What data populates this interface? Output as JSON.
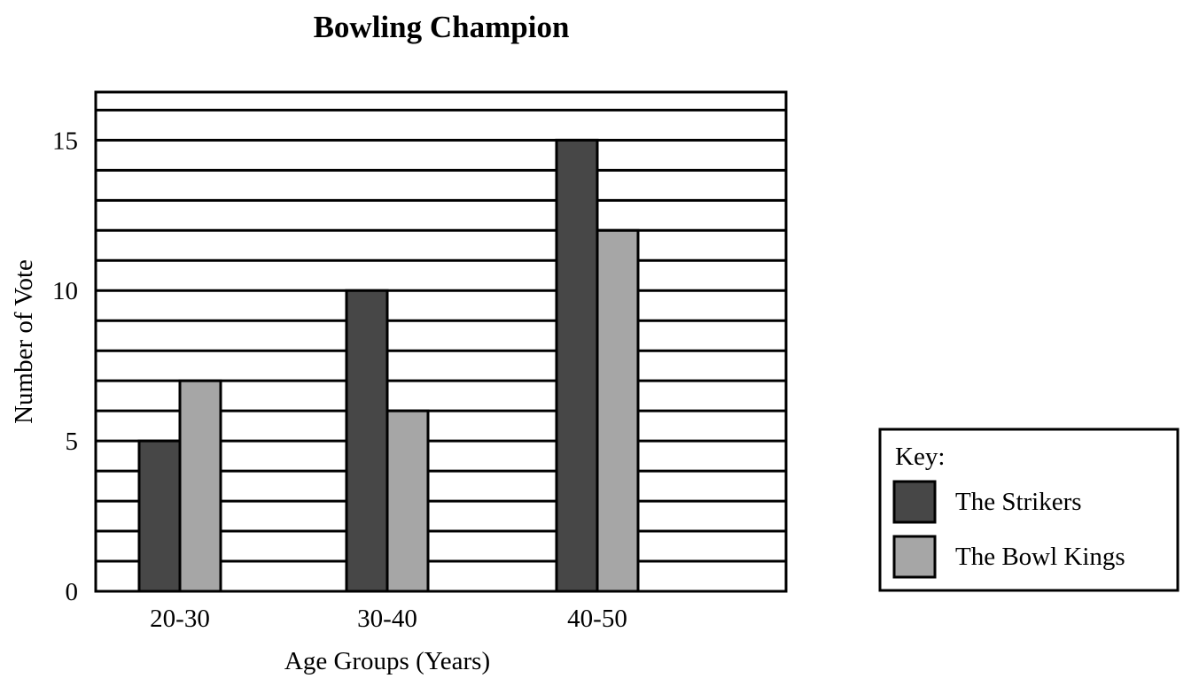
{
  "chart_data": {
    "type": "bar",
    "title": "Bowling Champion",
    "xlabel": "Age Groups (Years)",
    "ylabel": "Number of Vote",
    "categories": [
      "20-30",
      "30-40",
      "40-50"
    ],
    "series": [
      {
        "name": "The Strikers",
        "values": [
          5,
          10,
          15
        ],
        "color": "#474747"
      },
      {
        "name": "The Bowl Kings",
        "values": [
          7,
          6,
          12
        ],
        "color": "#a6a6a6"
      }
    ],
    "ylim": [
      0,
      16.6
    ],
    "yticks": [
      0,
      5,
      10,
      15
    ],
    "grid": true,
    "legend": {
      "title": "Key:",
      "placement": "bottom-right"
    }
  }
}
